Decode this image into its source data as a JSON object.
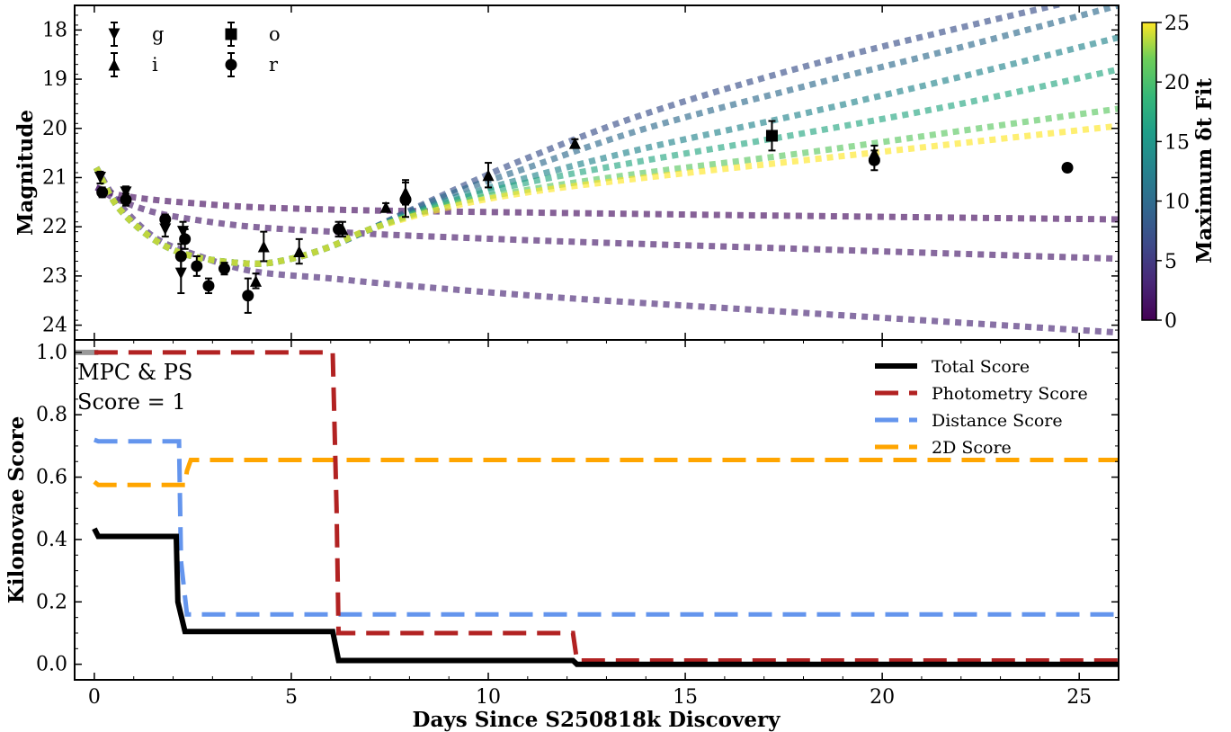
{
  "chart_data": [
    {
      "type": "scatter",
      "panel": "top",
      "ylabel": "Magnitude",
      "xlim": [
        -0.5,
        26
      ],
      "ylim": [
        24.3,
        17.5
      ],
      "y_inverted": true,
      "y_ticks": [
        "18",
        "19",
        "20",
        "21",
        "22",
        "23",
        "24"
      ],
      "y_tick_values": [
        18,
        19,
        20,
        21,
        22,
        23,
        24
      ],
      "legend": {
        "placement": "top-left",
        "entries": [
          {
            "label": "g",
            "marker": "triangle-down"
          },
          {
            "label": "i",
            "marker": "triangle-up"
          },
          {
            "label": "o",
            "marker": "square"
          },
          {
            "label": "r",
            "marker": "circle"
          }
        ]
      },
      "colorbar": {
        "label": "Maximum δt Fit",
        "range": [
          0,
          25
        ],
        "ticks": [
          "0",
          "5",
          "10",
          "15",
          "20",
          "25"
        ],
        "tick_values": [
          0,
          5,
          10,
          15,
          20,
          25
        ],
        "colormap": "viridis"
      },
      "points": [
        {
          "band": "g",
          "x": 0.15,
          "y": 21.0,
          "err": 0.12
        },
        {
          "band": "g",
          "x": 0.8,
          "y": 21.3,
          "err": 0.12
        },
        {
          "band": "g",
          "x": 1.8,
          "y": 22.05,
          "err": 0.15
        },
        {
          "band": "g",
          "x": 2.2,
          "y": 22.95,
          "err": 0.4
        },
        {
          "band": "g",
          "x": 2.25,
          "y": 22.1,
          "err": 0.2
        },
        {
          "band": "r",
          "x": 0.2,
          "y": 21.3,
          "err": 0.1
        },
        {
          "band": "r",
          "x": 0.8,
          "y": 21.45,
          "err": 0.12
        },
        {
          "band": "r",
          "x": 1.8,
          "y": 21.85,
          "err": 0.1
        },
        {
          "band": "r",
          "x": 2.2,
          "y": 22.6,
          "err": 0.25
        },
        {
          "band": "r",
          "x": 2.3,
          "y": 22.25,
          "err": 0.2
        },
        {
          "band": "r",
          "x": 2.6,
          "y": 22.8,
          "err": 0.2
        },
        {
          "band": "r",
          "x": 2.9,
          "y": 23.2,
          "err": 0.15
        },
        {
          "band": "r",
          "x": 3.3,
          "y": 22.85,
          "err": 0.12
        },
        {
          "band": "r",
          "x": 3.9,
          "y": 23.4,
          "err": 0.35
        },
        {
          "band": "r",
          "x": 6.2,
          "y": 22.05,
          "err": 0.15
        },
        {
          "band": "r",
          "x": 7.9,
          "y": 21.45,
          "err": 0.35
        },
        {
          "band": "r",
          "x": 19.8,
          "y": 20.65,
          "err": 0.2
        },
        {
          "band": "r",
          "x": 24.7,
          "y": 20.8,
          "err": 0.08
        },
        {
          "band": "i",
          "x": 4.1,
          "y": 23.1,
          "err": 0.15
        },
        {
          "band": "i",
          "x": 4.3,
          "y": 22.4,
          "err": 0.3
        },
        {
          "band": "i",
          "x": 5.2,
          "y": 22.5,
          "err": 0.25
        },
        {
          "band": "i",
          "x": 6.3,
          "y": 22.05,
          "err": 0.15
        },
        {
          "band": "i",
          "x": 7.4,
          "y": 21.6,
          "err": 0.08
        },
        {
          "band": "i",
          "x": 7.9,
          "y": 21.3,
          "err": 0.25
        },
        {
          "band": "i",
          "x": 10.0,
          "y": 20.95,
          "err": 0.25
        },
        {
          "band": "i",
          "x": 12.2,
          "y": 20.3,
          "err": 0.08
        },
        {
          "band": "i",
          "x": 19.8,
          "y": 20.5,
          "err": 0.15
        },
        {
          "band": "o",
          "x": 17.2,
          "y": 20.15,
          "err": 0.3
        }
      ],
      "model_curves": [
        {
          "max_dt": 1,
          "x": [
            0.05,
            0.6,
            1.5,
            2.5,
            4,
            6,
            8,
            12,
            18,
            26
          ],
          "y": [
            21.2,
            21.35,
            21.45,
            21.52,
            21.6,
            21.65,
            21.68,
            21.72,
            21.78,
            21.85
          ]
        },
        {
          "max_dt": 2,
          "x": [
            0.05,
            0.6,
            1.5,
            2.5,
            4,
            6,
            8,
            12,
            18,
            26
          ],
          "y": [
            21.2,
            21.45,
            21.7,
            21.85,
            22.0,
            22.1,
            22.18,
            22.3,
            22.45,
            22.65
          ]
        },
        {
          "max_dt": 3,
          "x": [
            0.05,
            0.6,
            1.5,
            2.5,
            4,
            6,
            8,
            12,
            18,
            26
          ],
          "y": [
            20.8,
            21.5,
            22.2,
            22.55,
            22.9,
            23.05,
            23.2,
            23.45,
            23.75,
            24.15
          ]
        },
        {
          "max_dt": 7,
          "x": [
            0.05,
            0.6,
            1.5,
            2.5,
            4,
            5,
            6,
            7,
            9,
            11,
            14,
            18,
            22,
            26
          ],
          "y": [
            20.8,
            21.6,
            22.25,
            22.6,
            22.75,
            22.65,
            22.4,
            22.05,
            21.3,
            20.6,
            19.7,
            18.75,
            17.95,
            17.2
          ]
        },
        {
          "max_dt": 10,
          "x": [
            0.05,
            0.6,
            1.5,
            2.5,
            4,
            5,
            6,
            7,
            9,
            11,
            14,
            18,
            22,
            26
          ],
          "y": [
            20.8,
            21.6,
            22.25,
            22.6,
            22.75,
            22.65,
            22.4,
            22.05,
            21.35,
            20.8,
            20.0,
            19.15,
            18.35,
            17.5
          ]
        },
        {
          "max_dt": 13,
          "x": [
            0.05,
            0.6,
            1.5,
            2.5,
            4,
            5,
            6,
            7,
            9,
            11,
            14,
            18,
            22,
            26
          ],
          "y": [
            20.8,
            21.6,
            22.25,
            22.6,
            22.75,
            22.65,
            22.4,
            22.05,
            21.45,
            21.0,
            20.4,
            19.7,
            18.95,
            18.15
          ]
        },
        {
          "max_dt": 17,
          "x": [
            0.05,
            0.6,
            1.5,
            2.5,
            4,
            5,
            6,
            7,
            9,
            11,
            14,
            18,
            22,
            26
          ],
          "y": [
            20.8,
            21.6,
            22.25,
            22.6,
            22.75,
            22.65,
            22.4,
            22.05,
            21.5,
            21.1,
            20.65,
            20.1,
            19.5,
            18.8
          ]
        },
        {
          "max_dt": 21,
          "x": [
            0.05,
            0.6,
            1.5,
            2.5,
            4,
            5,
            6,
            7,
            9,
            11,
            14,
            18,
            22,
            26
          ],
          "y": [
            20.8,
            21.6,
            22.25,
            22.6,
            22.75,
            22.65,
            22.4,
            22.05,
            21.55,
            21.25,
            20.9,
            20.5,
            20.05,
            19.6
          ]
        },
        {
          "max_dt": 25,
          "x": [
            0.05,
            0.6,
            1.5,
            2.5,
            4,
            5,
            6,
            7,
            9,
            11,
            14,
            18,
            22,
            26
          ],
          "y": [
            20.8,
            21.6,
            22.25,
            22.6,
            22.75,
            22.65,
            22.4,
            22.05,
            21.6,
            21.3,
            21.0,
            20.65,
            20.3,
            19.95
          ]
        }
      ]
    },
    {
      "type": "line",
      "panel": "bottom",
      "xlabel": "Days Since S250818k Discovery",
      "ylabel": "Kilonovae Score",
      "xlim": [
        -0.5,
        26
      ],
      "ylim": [
        -0.05,
        1.04
      ],
      "x_ticks": [
        "0",
        "5",
        "10",
        "15",
        "20",
        "25"
      ],
      "x_tick_values": [
        0,
        5,
        10,
        15,
        20,
        25
      ],
      "y_ticks": [
        "0.0",
        "0.2",
        "0.4",
        "0.6",
        "0.8",
        "1.0"
      ],
      "y_tick_values": [
        0,
        0.2,
        0.4,
        0.6,
        0.8,
        1.0
      ],
      "annotation": [
        "MPC & PS",
        "Score = 1"
      ],
      "legend_placement": "top-right",
      "series": [
        {
          "name": "Total Score",
          "color": "#000000",
          "style": "solid",
          "x": [
            0,
            0.1,
            0.15,
            2.08,
            2.12,
            2.3,
            6.05,
            6.2,
            12.15,
            12.25,
            26
          ],
          "y": [
            0.435,
            0.41,
            0.41,
            0.41,
            0.2,
            0.105,
            0.105,
            0.012,
            0.012,
            0.0,
            0.0
          ]
        },
        {
          "name": "Photometry Score",
          "color": "#b22222",
          "style": "dashed",
          "x": [
            0,
            6.05,
            6.15,
            6.2,
            12.15,
            12.25,
            26
          ],
          "y": [
            1.0,
            1.0,
            0.5,
            0.1,
            0.1,
            0.012,
            0.012
          ]
        },
        {
          "name": "Distance Score",
          "color": "#6495ed",
          "style": "dashed",
          "x": [
            0,
            0.1,
            0.2,
            2.15,
            2.2,
            2.35,
            26
          ],
          "y": [
            0.72,
            0.715,
            0.715,
            0.715,
            0.33,
            0.16,
            0.16
          ]
        },
        {
          "name": "2D Score",
          "color": "#ffa500",
          "style": "dashed",
          "x": [
            0,
            0.1,
            0.2,
            2.3,
            2.35,
            2.45,
            26
          ],
          "y": [
            0.585,
            0.575,
            0.575,
            0.575,
            0.62,
            0.655,
            0.655
          ]
        },
        {
          "name": "",
          "color": "#808080",
          "style": "solid",
          "x": [
            -0.5,
            0.1
          ],
          "y": [
            1.0,
            1.0
          ]
        }
      ]
    }
  ]
}
